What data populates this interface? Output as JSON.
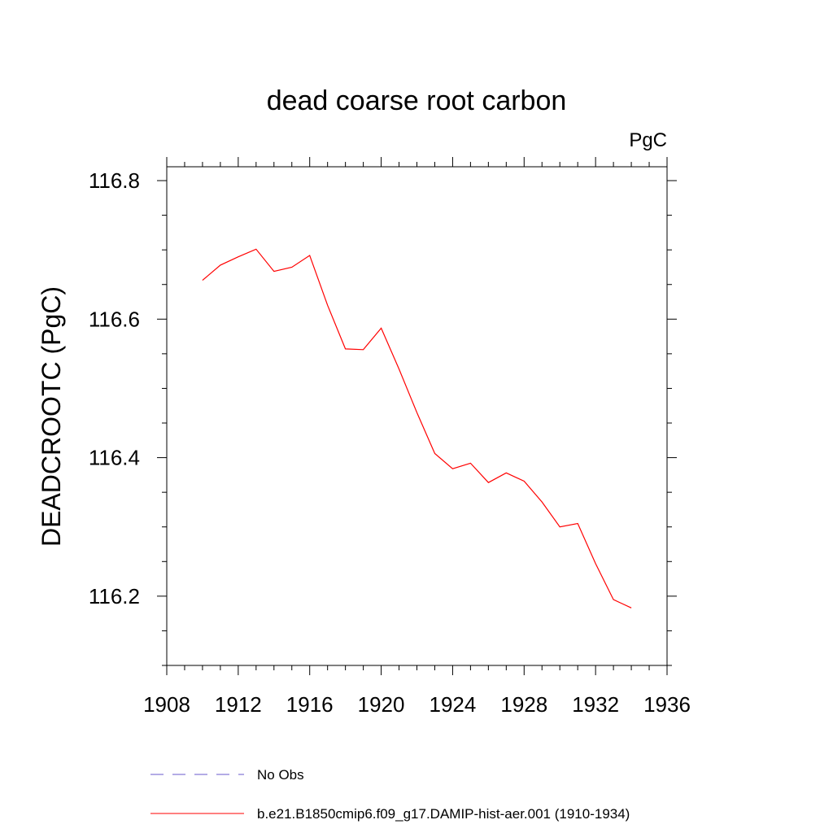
{
  "chart_data": {
    "type": "line",
    "title": "dead coarse root carbon",
    "units_label": "PgC",
    "ylabel": "DEADCROOTC  (PgC)",
    "xlabel": "",
    "xlim": [
      1908,
      1936
    ],
    "ylim": [
      116.1,
      116.82
    ],
    "x_ticks": [
      1908,
      1912,
      1916,
      1920,
      1924,
      1928,
      1932,
      1936
    ],
    "y_ticks": [
      116.2,
      116.4,
      116.6,
      116.8
    ],
    "grid": false,
    "legend_position": "bottom",
    "legend": [
      {
        "label": "No Obs",
        "color": "#6a5acd",
        "dash": "dashed"
      },
      {
        "label": "b.e21.B1850cmip6.f09_g17.DAMIP-hist-aer.001 (1910-1934)",
        "color": "#ff0000",
        "dash": "solid"
      }
    ],
    "series": [
      {
        "name": "b.e21.B1850cmip6.f09_g17.DAMIP-hist-aer.001 (1910-1934)",
        "color": "#ff0000",
        "x": [
          1910,
          1911,
          1912,
          1913,
          1914,
          1915,
          1916,
          1917,
          1918,
          1919,
          1920,
          1921,
          1922,
          1923,
          1924,
          1925,
          1926,
          1927,
          1928,
          1929,
          1930,
          1931,
          1932,
          1933,
          1934
        ],
        "y": [
          116.656,
          116.678,
          116.69,
          116.701,
          116.669,
          116.675,
          116.692,
          116.62,
          116.557,
          116.556,
          116.587,
          116.528,
          116.465,
          116.406,
          116.384,
          116.392,
          116.364,
          116.378,
          116.366,
          116.336,
          116.3,
          116.305,
          116.247,
          116.195,
          116.183
        ]
      }
    ]
  }
}
